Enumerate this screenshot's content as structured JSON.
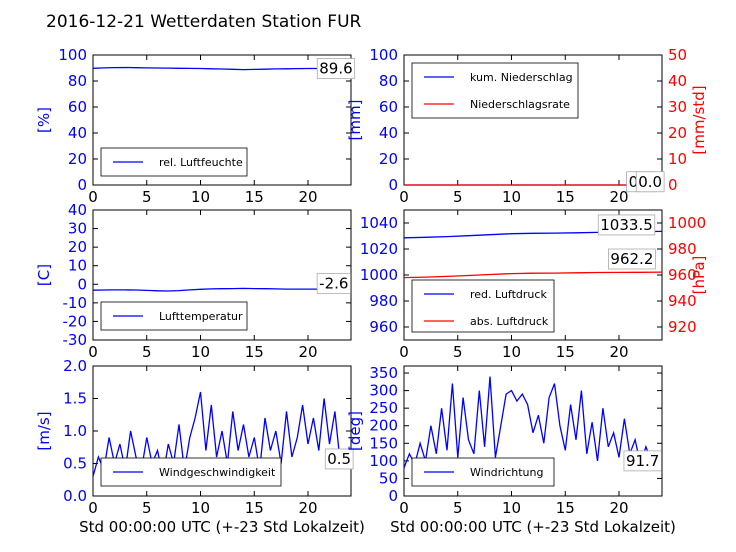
{
  "figure_title": "2016-12-21 Wetterdaten Station FUR",
  "chart_data": [
    {
      "type": "line",
      "xlim": [
        0,
        24
      ],
      "xticks": [
        0,
        5,
        10,
        15,
        20
      ],
      "ylim": [
        0,
        100
      ],
      "yticks": [
        0,
        20,
        40,
        60,
        80,
        100
      ],
      "ylabel": "[%]",
      "grid": false,
      "legend": "lower-left",
      "series": [
        {
          "name": "rel. Luftfeuchte",
          "color": "#0000ff",
          "axis": "left",
          "x": [
            0,
            1,
            2,
            3,
            4,
            5,
            6,
            7,
            8,
            9,
            10,
            11,
            12,
            13,
            14,
            15,
            16,
            17,
            18,
            19,
            20,
            21,
            22,
            23,
            24
          ],
          "values": [
            89.8,
            90.1,
            90.3,
            90.4,
            90.2,
            90.1,
            90.0,
            89.9,
            89.8,
            89.7,
            89.6,
            89.4,
            89.2,
            89.0,
            88.8,
            88.9,
            89.1,
            89.3,
            89.4,
            89.5,
            89.6,
            89.6,
            89.7,
            89.6,
            89.6
          ]
        }
      ],
      "annotations": [
        {
          "text": "89.6",
          "x": 22.6,
          "y": 89.6
        }
      ]
    },
    {
      "type": "line",
      "xlim": [
        0,
        24
      ],
      "xticks": [
        0,
        5,
        10,
        15,
        20
      ],
      "ylim": [
        0,
        100
      ],
      "yticks": [
        0,
        20,
        40,
        60,
        80,
        100
      ],
      "ylabel": "[mm]",
      "y2lim": [
        0,
        50
      ],
      "y2ticks": [
        0,
        10,
        20,
        30,
        40,
        50
      ],
      "y2label": "[mm/std]",
      "grid": false,
      "legend": "upper-left",
      "series": [
        {
          "name": "kum. Niederschlag",
          "color": "#0000ff",
          "axis": "left",
          "x": [
            0,
            24
          ],
          "values": [
            0,
            0
          ]
        },
        {
          "name": "Niederschlagsrate",
          "color": "#ff0000",
          "axis": "right",
          "x": [
            0,
            24
          ],
          "values": [
            0,
            0
          ]
        }
      ],
      "annotations": [
        {
          "text": "0.0",
          "x": 22.0,
          "y": 2.5
        },
        {
          "text": "0.0",
          "x": 22.9,
          "y": 2.5
        }
      ]
    },
    {
      "type": "line",
      "xlim": [
        0,
        24
      ],
      "xticks": [
        0,
        5,
        10,
        15,
        20
      ],
      "ylim": [
        -30,
        40
      ],
      "yticks": [
        -30,
        -20,
        -10,
        0,
        10,
        20,
        30,
        40
      ],
      "ylabel": "[C]",
      "grid": false,
      "legend": "lower-left",
      "series": [
        {
          "name": "Lufttemperatur",
          "color": "#0000ff",
          "axis": "left",
          "x": [
            0,
            1,
            2,
            3,
            4,
            5,
            6,
            7,
            8,
            9,
            10,
            11,
            12,
            13,
            14,
            15,
            16,
            17,
            18,
            19,
            20,
            21,
            22,
            23,
            24
          ],
          "values": [
            -3.2,
            -3.1,
            -3.0,
            -3.0,
            -3.1,
            -3.3,
            -3.5,
            -3.6,
            -3.4,
            -3.0,
            -2.7,
            -2.5,
            -2.4,
            -2.3,
            -2.2,
            -2.3,
            -2.4,
            -2.5,
            -2.6,
            -2.6,
            -2.6,
            -2.6,
            -2.7,
            -2.6,
            -2.6
          ]
        }
      ],
      "annotations": [
        {
          "text": "-2.6",
          "x": 22.4,
          "y": 0.5
        }
      ]
    },
    {
      "type": "line",
      "xlim": [
        0,
        24
      ],
      "xticks": [
        0,
        5,
        10,
        15,
        20
      ],
      "ylim": [
        950,
        1050
      ],
      "yticks": [
        960,
        980,
        1000,
        1020,
        1040
      ],
      "y2lim": [
        910,
        1010
      ],
      "y2ticks": [
        920,
        940,
        960,
        980,
        1000
      ],
      "y2label": "[hPa]",
      "grid": false,
      "legend": "lower-left",
      "series": [
        {
          "name": "red. Luftdruck",
          "color": "#0000ff",
          "axis": "left",
          "x": [
            0,
            2,
            4,
            6,
            8,
            10,
            12,
            14,
            16,
            18,
            20,
            22,
            24
          ],
          "values": [
            1028.6,
            1029.0,
            1029.5,
            1030.2,
            1031.0,
            1031.8,
            1032.1,
            1032.2,
            1032.5,
            1032.8,
            1033.1,
            1033.4,
            1033.5
          ]
        },
        {
          "name": "abs. Luftdruck",
          "color": "#ff0000",
          "axis": "right",
          "x": [
            0,
            2,
            4,
            6,
            8,
            10,
            12,
            14,
            16,
            18,
            20,
            22,
            24
          ],
          "values": [
            958.0,
            958.4,
            958.9,
            959.6,
            960.4,
            961.1,
            961.4,
            961.5,
            961.7,
            961.9,
            962.0,
            962.1,
            962.2
          ]
        }
      ],
      "annotations": [
        {
          "text": "1033.5",
          "x": 20.7,
          "y": 1038.5
        },
        {
          "text": "962.2",
          "x": 21.2,
          "y": 1012.3
        }
      ]
    },
    {
      "type": "line",
      "xlim": [
        0,
        24
      ],
      "xticks": [
        0,
        5,
        10,
        15,
        20
      ],
      "ylim": [
        0.0,
        2.0
      ],
      "yticks": [
        0.0,
        0.5,
        1.0,
        1.5,
        2.0
      ],
      "ylabel": "[m/s]",
      "xlabel": "Std 00:00:00 UTC (+-23 Std Lokalzeit)",
      "grid": false,
      "legend": "lower-left",
      "series": [
        {
          "name": "Windgeschwindigkeit",
          "color": "#0000ff",
          "axis": "left",
          "x": [
            0,
            0.5,
            1,
            1.5,
            2,
            2.5,
            3,
            3.5,
            4,
            4.5,
            5,
            5.5,
            6,
            6.5,
            7,
            7.5,
            8,
            8.5,
            9,
            9.5,
            10,
            10.5,
            11,
            11.5,
            12,
            12.5,
            13,
            13.5,
            14,
            14.5,
            15,
            15.5,
            16,
            16.5,
            17,
            17.5,
            18,
            18.5,
            19,
            19.5,
            20,
            20.5,
            21,
            21.5,
            22,
            22.5,
            23,
            23.5,
            24
          ],
          "values": [
            0.3,
            0.6,
            0.4,
            0.9,
            0.5,
            0.8,
            0.4,
            1.0,
            0.6,
            0.4,
            0.9,
            0.5,
            0.7,
            0.3,
            0.8,
            0.5,
            1.1,
            0.4,
            0.9,
            1.2,
            1.6,
            0.7,
            1.4,
            0.6,
            1.0,
            0.5,
            1.3,
            0.7,
            1.1,
            0.6,
            0.9,
            0.4,
            1.2,
            0.7,
            1.0,
            0.5,
            1.3,
            0.6,
            0.9,
            1.4,
            0.8,
            1.2,
            0.7,
            1.5,
            0.8,
            1.3,
            0.5,
            0.7,
            0.5
          ]
        }
      ],
      "annotations": [
        {
          "text": "0.5",
          "x": 22.9,
          "y": 0.57
        }
      ]
    },
    {
      "type": "line",
      "xlim": [
        0,
        24
      ],
      "xticks": [
        0,
        5,
        10,
        15,
        20
      ],
      "ylim": [
        0,
        370
      ],
      "yticks": [
        0,
        50,
        100,
        150,
        200,
        250,
        300,
        350
      ],
      "ylabel": "[deg]",
      "xlabel": "Std 00:00:00 UTC (+-23 Std Lokalzeit)",
      "grid": false,
      "legend": "lower-left",
      "series": [
        {
          "name": "Windrichtung",
          "color": "#0000ff",
          "axis": "left",
          "x": [
            0,
            0.5,
            1,
            1.5,
            2,
            2.5,
            3,
            3.5,
            4,
            4.5,
            5,
            5.5,
            6,
            6.5,
            7,
            7.5,
            8,
            8.5,
            9,
            9.5,
            10,
            10.5,
            11,
            11.5,
            12,
            12.5,
            13,
            13.5,
            14,
            14.5,
            15,
            15.5,
            16,
            16.5,
            17,
            17.5,
            18,
            18.5,
            19,
            19.5,
            20,
            20.5,
            21,
            21.5,
            22,
            22.5,
            23,
            23.5,
            24
          ],
          "values": [
            80,
            120,
            90,
            150,
            100,
            200,
            120,
            250,
            130,
            320,
            110,
            280,
            160,
            120,
            300,
            140,
            340,
            110,
            200,
            290,
            300,
            270,
            290,
            260,
            180,
            230,
            150,
            280,
            320,
            200,
            130,
            260,
            160,
            300,
            120,
            210,
            100,
            250,
            140,
            180,
            110,
            220,
            120,
            160,
            90,
            140,
            100,
            120,
            92
          ]
        }
      ],
      "annotations": [
        {
          "text": "91.7",
          "x": 22.2,
          "y": 100
        }
      ]
    }
  ]
}
